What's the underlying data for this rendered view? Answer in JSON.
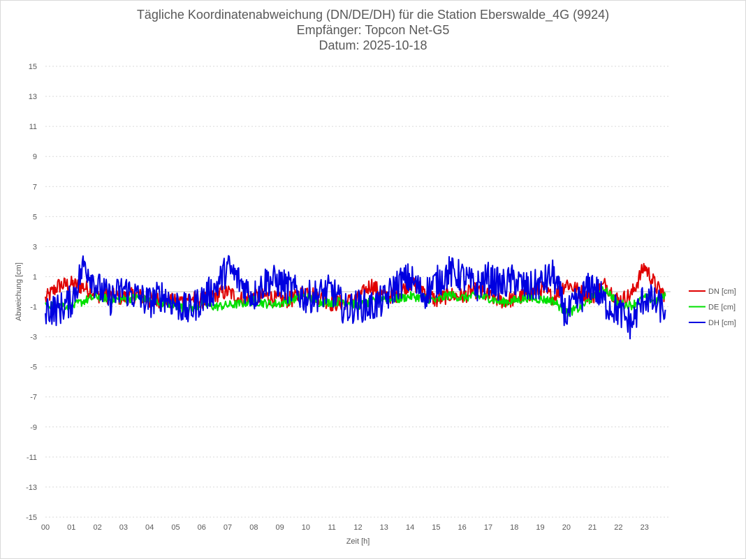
{
  "chart_data": {
    "type": "line",
    "title": "Tägliche Koordinatenabweichung (DN/DE/DH) für die Station Eberswalde_4G (9924)",
    "subtitle1": "Empfänger: Topcon Net-G5",
    "subtitle2": "Datum: 2025-10-18",
    "xlabel": "Zeit [h]",
    "ylabel": "Abweichung [cm]",
    "ylim": [
      -15,
      15
    ],
    "xlim": [
      0,
      24
    ],
    "yticks": [
      15,
      13,
      11,
      9,
      7,
      5,
      3,
      1,
      -1,
      -3,
      -5,
      -7,
      -9,
      -11,
      -13,
      -15
    ],
    "xtick_labels": [
      "00",
      "01",
      "02",
      "03",
      "04",
      "05",
      "06",
      "07",
      "08",
      "09",
      "10",
      "11",
      "12",
      "13",
      "14",
      "15",
      "16",
      "17",
      "18",
      "19",
      "20",
      "21",
      "22",
      "23"
    ],
    "grid": true,
    "legend_position": "right",
    "series": [
      {
        "name": "DN [cm]",
        "color": "#e00000",
        "x": [
          0,
          0.5,
          1,
          1.5,
          2,
          2.5,
          3,
          3.5,
          4,
          4.5,
          5,
          5.5,
          6,
          6.5,
          7,
          7.5,
          8,
          8.5,
          9,
          9.5,
          10,
          10.5,
          11,
          11.5,
          12,
          12.5,
          13,
          13.5,
          14,
          14.5,
          15,
          15.5,
          16,
          16.5,
          17,
          17.5,
          18,
          18.5,
          19,
          19.5,
          20,
          20.5,
          21,
          21.5,
          22,
          22.5,
          23,
          23.5,
          23.8
        ],
        "y": [
          -0.5,
          0.4,
          0.5,
          0.3,
          -0.2,
          -0.3,
          -0.4,
          -0.2,
          -0.6,
          -0.5,
          -0.7,
          -0.4,
          -0.6,
          -0.2,
          0.0,
          -0.5,
          -0.4,
          -0.3,
          -0.6,
          -0.5,
          0.1,
          -0.3,
          -0.8,
          -0.7,
          -0.5,
          0.5,
          -0.3,
          -0.2,
          0.6,
          0.2,
          -0.6,
          -0.2,
          -0.3,
          0.1,
          -0.3,
          -0.6,
          -0.5,
          -0.2,
          0.2,
          -0.4,
          0.6,
          0.0,
          -0.3,
          0.5,
          -0.6,
          -0.2,
          1.7,
          0.2,
          -0.2
        ]
      },
      {
        "name": "DE [cm]",
        "color": "#00e000",
        "x": [
          0,
          0.5,
          1,
          1.5,
          2,
          2.5,
          3,
          3.5,
          4,
          4.5,
          5,
          5.5,
          6,
          6.5,
          7,
          7.5,
          8,
          8.5,
          9,
          9.5,
          10,
          10.5,
          11,
          11.5,
          12,
          12.5,
          13,
          13.5,
          14,
          14.5,
          15,
          15.5,
          16,
          16.5,
          17,
          17.5,
          18,
          18.5,
          19,
          19.5,
          20,
          20.5,
          21,
          21.5,
          22,
          22.5,
          23,
          23.5,
          23.8
        ],
        "y": [
          -0.9,
          -0.8,
          -1.0,
          -0.6,
          -0.3,
          -0.5,
          -0.5,
          -0.4,
          -0.6,
          -0.7,
          -0.9,
          -1.2,
          -0.8,
          -1.0,
          -0.9,
          -0.8,
          -0.6,
          -0.8,
          -0.8,
          -0.5,
          -0.3,
          -0.7,
          -0.7,
          -0.6,
          -0.9,
          -0.7,
          -0.4,
          -0.5,
          -0.3,
          -0.4,
          -0.6,
          -0.2,
          -0.4,
          -0.3,
          -0.4,
          -0.7,
          -0.6,
          -0.4,
          -0.5,
          -0.6,
          -1.4,
          -1.1,
          -0.4,
          0.2,
          -0.8,
          -0.9,
          -0.4,
          -0.6,
          -0.3
        ]
      },
      {
        "name": "DH [cm]",
        "color": "#0000e0",
        "x": [
          0,
          0.5,
          1,
          1.5,
          2,
          2.5,
          3,
          3.5,
          4,
          4.5,
          5,
          5.5,
          6,
          6.5,
          7,
          7.5,
          8,
          8.5,
          9,
          9.5,
          10,
          10.5,
          11,
          11.5,
          12,
          12.5,
          13,
          13.5,
          14,
          14.5,
          15,
          15.5,
          16,
          16.5,
          17,
          17.5,
          18,
          18.5,
          19,
          19.5,
          20,
          20.5,
          21,
          21.5,
          22,
          22.5,
          23,
          23.5,
          23.8
        ],
        "y": [
          -1.1,
          -1.2,
          -0.6,
          1.9,
          0.3,
          -0.5,
          0.2,
          -0.3,
          -0.7,
          -0.2,
          -0.8,
          -1.3,
          -0.5,
          0.2,
          1.6,
          0.6,
          -0.3,
          0.8,
          0.6,
          0.1,
          -0.4,
          -0.2,
          0.1,
          -1.2,
          -0.9,
          -1.0,
          -0.6,
          0.5,
          0.9,
          -0.2,
          0.6,
          1.3,
          1.0,
          0.3,
          0.9,
          0.4,
          0.8,
          0.2,
          0.5,
          1.1,
          -1.6,
          -0.5,
          0.5,
          -0.8,
          -1.3,
          -2.2,
          -0.3,
          -0.9,
          -1.2
        ]
      }
    ]
  }
}
